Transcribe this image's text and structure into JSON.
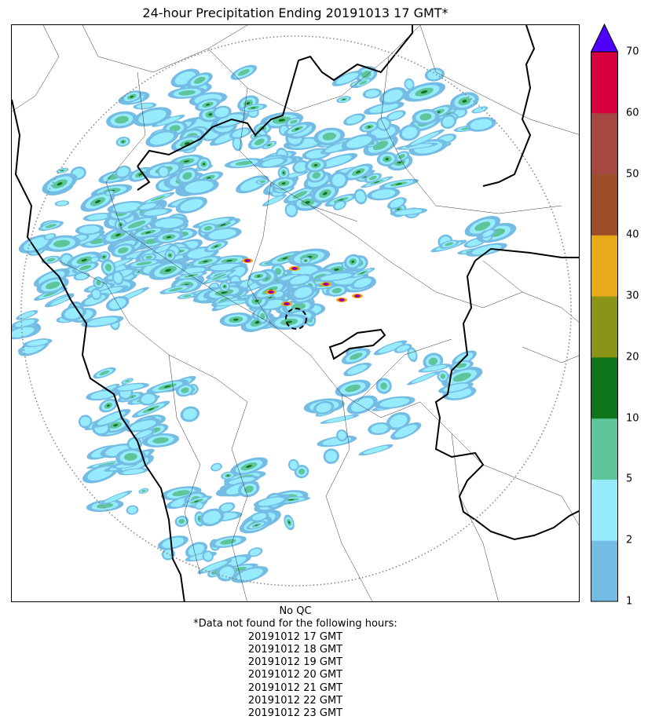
{
  "title": "24-hour Precipitation Ending 20191013 17 GMT*",
  "map": {
    "description_layers": [
      "country-borders",
      "state-borders",
      "radar-range-ring",
      "precipitation-field"
    ],
    "radar_site": "dashed-circle-marker"
  },
  "colorbar": {
    "levels": [
      {
        "value": "1",
        "color": "#74bce4"
      },
      {
        "value": "2",
        "color": "#96ecfc"
      },
      {
        "value": "5",
        "color": "#5ec49a"
      },
      {
        "value": "10",
        "color": "#0e741a"
      },
      {
        "value": "20",
        "color": "#8a9416"
      },
      {
        "value": "30",
        "color": "#e8aa18"
      },
      {
        "value": "40",
        "color": "#9c4e28"
      },
      {
        "value": "50",
        "color": "#a64842"
      },
      {
        "value": "60",
        "color": "#d60040"
      },
      {
        "value": "70",
        "color": "#5000ff"
      }
    ],
    "tick_labels": [
      "1",
      "2",
      "5",
      "10",
      "20",
      "30",
      "40",
      "50",
      "60",
      "70"
    ],
    "extend": "max"
  },
  "notes": {
    "qc": "No QC",
    "missing_header": "*Data not found for the following hours:",
    "missing_hours": [
      "20191012 17 GMT",
      "20191012 18 GMT",
      "20191012 19 GMT",
      "20191012 20 GMT",
      "20191012 21 GMT",
      "20191012 22 GMT",
      "20191012 23 GMT"
    ]
  }
}
